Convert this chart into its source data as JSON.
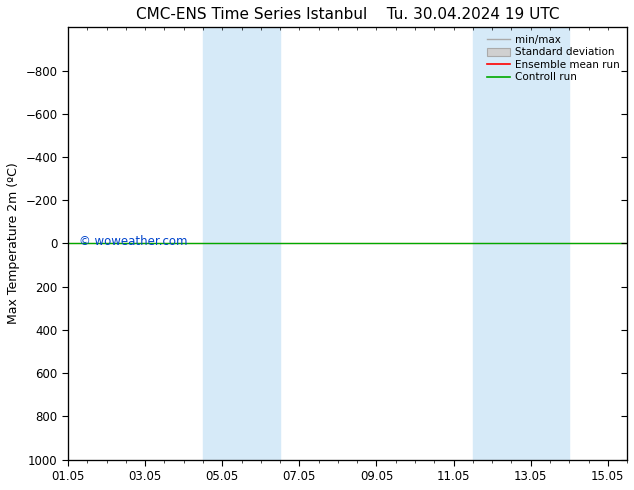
{
  "title": "CMC-ENS Time Series Istanbul    Tu. 30.04.2024 19 UTC",
  "ylabel": "Max Temperature 2m (ºC)",
  "ylim_bottom": -1000,
  "ylim_top": 1000,
  "yticks": [
    -800,
    -600,
    -400,
    -200,
    0,
    200,
    400,
    600,
    800,
    1000
  ],
  "xtick_labels": [
    "01.05",
    "03.05",
    "05.05",
    "07.05",
    "09.05",
    "11.05",
    "13.05",
    "15.05"
  ],
  "xtick_positions": [
    0,
    2,
    4,
    6,
    8,
    10,
    12,
    14
  ],
  "xlim": [
    0,
    14.5
  ],
  "shade_bands": [
    {
      "x_start": 3.5,
      "x_end": 4.5,
      "color": "#d6eaf8"
    },
    {
      "x_start": 4.5,
      "x_end": 5.5,
      "color": "#d6eaf8"
    },
    {
      "x_start": 11.0,
      "x_end": 12.0,
      "color": "#d6eaf8"
    },
    {
      "x_start": 12.0,
      "x_end": 13.0,
      "color": "#d6eaf8"
    }
  ],
  "control_run_y": 0.0,
  "ensemble_mean_y": 0.0,
  "green_line_color": "#00aa00",
  "red_line_color": "#ff0000",
  "watermark": "© woweather.com",
  "watermark_color": "#0044cc",
  "legend_items": [
    "min/max",
    "Standard deviation",
    "Ensemble mean run",
    "Controll run"
  ],
  "background_color": "#ffffff",
  "tick_color": "#000000",
  "title_fontsize": 11,
  "axis_fontsize": 9,
  "tick_fontsize": 8.5
}
